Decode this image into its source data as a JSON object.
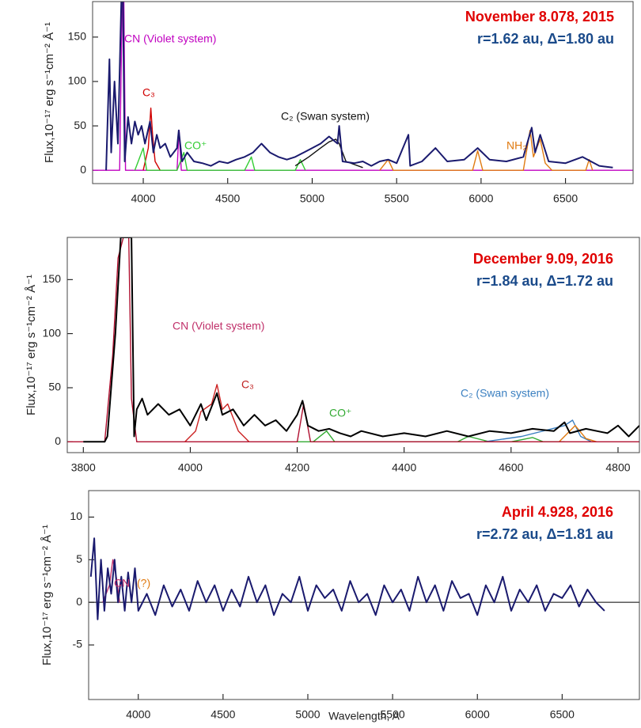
{
  "chart_data": [
    {
      "type": "line",
      "title": "November  8.078, 2015",
      "subtitle": "r=1.62 au,  Δ=1.80 au",
      "title_color": "#e00000",
      "subtitle_color": "#1a4a8a",
      "y_label": "Flux,10⁻¹⁷ erg s⁻¹cm⁻² Å⁻¹",
      "xlim": [
        3700,
        6900
      ],
      "ylim": [
        -15,
        190
      ],
      "xticks": [
        4000,
        4500,
        5000,
        5500,
        6000,
        6500
      ],
      "yticks": [
        0,
        50,
        100,
        150
      ],
      "annotations": [
        {
          "text": "CN (Violet system)",
          "color": "#c000c0"
        },
        {
          "text": "C₃",
          "color": "#d00000"
        },
        {
          "text": "C₂ (Swan system)",
          "color": "#111111"
        },
        {
          "text": "CO⁺",
          "color": "#33cc33"
        },
        {
          "text": "NH₂",
          "color": "#e07a10"
        }
      ],
      "series": [
        {
          "color": "#c000c0",
          "x": [
            3700,
            3860,
            3875,
            3885,
            3895,
            3910,
            4200,
            4212,
            4225,
            6900
          ],
          "values": [
            0,
            0,
            190,
            190,
            0,
            0,
            0,
            45,
            0,
            0
          ]
        },
        {
          "color": "#d00000",
          "x": [
            4000,
            4030,
            4045,
            4055,
            4070,
            4100
          ],
          "values": [
            0,
            25,
            70,
            40,
            10,
            0
          ]
        },
        {
          "color": "#33cc33",
          "x": [
            3950,
            4000,
            4020,
            4040,
            4200,
            4240,
            4260,
            4280,
            4600,
            4640,
            4660,
            4900,
            4930,
            4960
          ],
          "values": [
            0,
            25,
            0,
            0,
            0,
            20,
            0,
            0,
            0,
            15,
            0,
            0,
            12,
            0
          ]
        },
        {
          "color": "#e07a10",
          "x": [
            5400,
            5450,
            5480,
            5950,
            5980,
            6010,
            6250,
            6290,
            6310,
            6350,
            6380,
            6420,
            6620,
            6640,
            6660
          ],
          "values": [
            0,
            12,
            0,
            0,
            22,
            0,
            0,
            45,
            15,
            35,
            8,
            0,
            0,
            12,
            0
          ]
        },
        {
          "color": "#111111",
          "x": [
            4900,
            4980,
            5050,
            5100,
            5140,
            5160,
            5200,
            5300
          ],
          "values": [
            5,
            15,
            25,
            32,
            35,
            30,
            10,
            3
          ]
        },
        {
          "color": "#1a1a6e",
          "x": [
            3780,
            3800,
            3810,
            3830,
            3850,
            3870,
            3880,
            3890,
            3910,
            3930,
            3950,
            3970,
            3990,
            4010,
            4040,
            4060,
            4080,
            4100,
            4130,
            4160,
            4200,
            4210,
            4230,
            4260,
            4300,
            4350,
            4400,
            4450,
            4500,
            4550,
            4600,
            4650,
            4700,
            4750,
            4800,
            4850,
            4900,
            4950,
            5000,
            5050,
            5100,
            5150,
            5160,
            5180,
            5250,
            5300,
            5350,
            5400,
            5450,
            5500,
            5570,
            5580,
            5650,
            5730,
            5800,
            5900,
            5980,
            6050,
            6150,
            6250,
            6300,
            6320,
            6350,
            6400,
            6500,
            6600,
            6700,
            6780
          ],
          "values": [
            0,
            125,
            20,
            100,
            30,
            190,
            190,
            10,
            60,
            30,
            55,
            40,
            50,
            30,
            55,
            20,
            40,
            25,
            30,
            15,
            25,
            45,
            10,
            20,
            10,
            8,
            5,
            10,
            8,
            12,
            15,
            20,
            30,
            20,
            15,
            12,
            15,
            20,
            25,
            30,
            38,
            30,
            50,
            10,
            8,
            10,
            5,
            10,
            12,
            8,
            40,
            5,
            10,
            25,
            10,
            12,
            25,
            12,
            10,
            15,
            48,
            20,
            40,
            10,
            8,
            15,
            5,
            3
          ]
        }
      ]
    },
    {
      "type": "line",
      "title": "December 9.09, 2016",
      "subtitle": "r=1.84 au,  Δ=1.72 au",
      "title_color": "#e00000",
      "subtitle_color": "#1a4a8a",
      "y_label": "Flux,10⁻¹⁷ erg s⁻¹cm⁻² Å⁻¹",
      "xlim": [
        3770,
        4840
      ],
      "ylim": [
        -10,
        189
      ],
      "xticks": [
        3800,
        4000,
        4200,
        4400,
        4600,
        4800
      ],
      "yticks": [
        0,
        50,
        100,
        150
      ],
      "annotations": [
        {
          "text": "CN (Violet system)",
          "color": "#c0306a"
        },
        {
          "text": "C₃",
          "color": "#c02020"
        },
        {
          "text": "CO⁺",
          "color": "#33aa33"
        },
        {
          "text": "C₂ (Swan system)",
          "color": "#3a7fc0"
        }
      ],
      "series": [
        {
          "color": "#33aa33",
          "x": [
            4200,
            4230,
            4255,
            4270,
            4300,
            4500,
            4520,
            4560,
            4600,
            4640,
            4660,
            4700
          ],
          "values": [
            0,
            0,
            10,
            0,
            0,
            0,
            5,
            0,
            0,
            4,
            0,
            0
          ]
        },
        {
          "color": "#3a7fc0",
          "x": [
            4550,
            4620,
            4700,
            4715,
            4730,
            4750
          ],
          "values": [
            0,
            5,
            15,
            20,
            5,
            0
          ]
        },
        {
          "color": "#e07a10",
          "x": [
            4690,
            4720,
            4740,
            4760
          ],
          "values": [
            0,
            15,
            3,
            0
          ]
        },
        {
          "color": "#b01030",
          "x": [
            3770,
            3840,
            3855,
            3865,
            3875,
            3885,
            3890,
            3900,
            4200,
            4212,
            4225,
            4840
          ],
          "values": [
            0,
            0,
            80,
            170,
            189,
            189,
            40,
            0,
            0,
            35,
            0,
            0
          ]
        },
        {
          "color": "#cc2222",
          "x": [
            3990,
            4010,
            4020,
            4040,
            4050,
            4060,
            4070,
            4090,
            4110
          ],
          "values": [
            0,
            10,
            28,
            35,
            53,
            30,
            35,
            10,
            0
          ]
        },
        {
          "color": "#000000",
          "x": [
            3800,
            3840,
            3845,
            3860,
            3870,
            3890,
            3895,
            3900,
            3910,
            3920,
            3940,
            3960,
            3980,
            4000,
            4020,
            4030,
            4050,
            4060,
            4080,
            4100,
            4120,
            4140,
            4160,
            4180,
            4200,
            4210,
            4220,
            4240,
            4260,
            4280,
            4300,
            4320,
            4360,
            4400,
            4440,
            4480,
            4520,
            4560,
            4600,
            4640,
            4680,
            4700,
            4710,
            4740,
            4780,
            4800,
            4820,
            4840
          ],
          "values": [
            0,
            0,
            5,
            100,
            189,
            189,
            5,
            30,
            40,
            25,
            35,
            25,
            30,
            15,
            35,
            20,
            45,
            25,
            30,
            15,
            25,
            15,
            20,
            10,
            25,
            38,
            15,
            10,
            12,
            8,
            5,
            10,
            5,
            8,
            5,
            10,
            5,
            10,
            8,
            12,
            10,
            18,
            8,
            12,
            8,
            15,
            5,
            15
          ]
        }
      ]
    },
    {
      "type": "line",
      "title": "April  4.928, 2016",
      "subtitle": "r=2.72 au,  Δ=1.81 au",
      "title_color": "#e00000",
      "subtitle_color": "#1a4a8a",
      "y_label": "Flux,10⁻¹⁷ erg s⁻¹cm⁻² Å⁻¹",
      "x_label": "Wavelength, A",
      "zero_line": true,
      "xlim": [
        3707,
        6956
      ],
      "ylim": [
        -11.4,
        13.1
      ],
      "xticks": [
        4000,
        4500,
        5000,
        5500,
        6000,
        6500
      ],
      "yticks": [
        -5,
        0,
        5,
        10
      ],
      "annotations": [
        {
          "text": "CN",
          "color": "#c0306a"
        },
        {
          "text": "(?)",
          "color": "#e07a10"
        }
      ],
      "series": [
        {
          "color": "#c0306a",
          "x": [
            3790,
            3830,
            3850,
            3870,
            3890
          ],
          "values": [
            0,
            2,
            5,
            3,
            0
          ]
        },
        {
          "color": "#1a1a6e",
          "x": [
            3720,
            3740,
            3760,
            3780,
            3800,
            3820,
            3840,
            3860,
            3880,
            3900,
            3920,
            3940,
            3960,
            3980,
            4000,
            4050,
            4100,
            4150,
            4200,
            4250,
            4300,
            4350,
            4400,
            4450,
            4500,
            4550,
            4600,
            4650,
            4700,
            4750,
            4800,
            4850,
            4900,
            4950,
            5000,
            5050,
            5100,
            5150,
            5200,
            5250,
            5300,
            5350,
            5400,
            5450,
            5500,
            5550,
            5600,
            5650,
            5700,
            5750,
            5800,
            5850,
            5900,
            5950,
            6000,
            6050,
            6100,
            6150,
            6200,
            6250,
            6300,
            6350,
            6400,
            6450,
            6500,
            6550,
            6600,
            6650,
            6700,
            6750
          ],
          "values": [
            3,
            7.5,
            -2,
            5,
            -1,
            4,
            1,
            5,
            0,
            3,
            -1,
            3.5,
            0,
            4,
            -1,
            1,
            -1.5,
            2,
            -0.5,
            1.5,
            -1,
            2.5,
            0,
            2,
            -1,
            1.5,
            -0.5,
            3,
            0,
            2,
            -1.5,
            1,
            0,
            3,
            -1,
            2,
            0.5,
            1.5,
            -1,
            2.5,
            0,
            1,
            -1.5,
            2,
            0,
            1.5,
            -1,
            3,
            0,
            2,
            -1,
            2.5,
            0.5,
            1,
            -1.5,
            2,
            0,
            3,
            -1,
            1.5,
            0,
            2,
            -1,
            1,
            0.5,
            2,
            -0.5,
            1.5,
            0,
            -1
          ]
        }
      ]
    }
  ]
}
